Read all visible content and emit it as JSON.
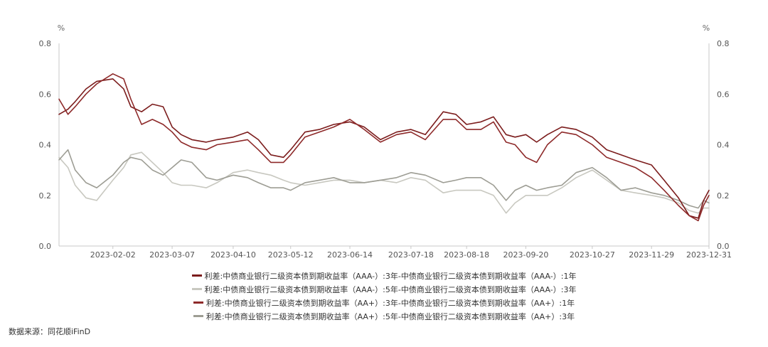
{
  "source": "数据来源：同花顺iFinD",
  "chart_data": {
    "type": "line",
    "title": "",
    "y_unit_left": "%",
    "y_unit_right": "%",
    "ylim": [
      0,
      0.8
    ],
    "yticks": [
      "0.0",
      "0.2",
      "0.4",
      "0.6",
      "0.8"
    ],
    "x_range": [
      "2023-01-03",
      "2023-12-31"
    ],
    "xticks": [
      "2023-02-02",
      "2023-03-07",
      "2023-04-10",
      "2023-05-12",
      "2023-06-14",
      "2023-07-18",
      "2023-08-18",
      "2023-09-20",
      "2023-10-27",
      "2023-11-29",
      "2023-12-31"
    ],
    "legend_position": "bottom",
    "series": [
      {
        "name": "利差:中债商业银行二级资本债到期收益率（AAA-）:3年-中债商业银行二级资本债到期收益率（AAA-）:1年",
        "color": "#7b1c1c",
        "points": [
          [
            "2023-01-03",
            0.52
          ],
          [
            "2023-01-08",
            0.54
          ],
          [
            "2023-01-12",
            0.57
          ],
          [
            "2023-01-18",
            0.62
          ],
          [
            "2023-01-24",
            0.65
          ],
          [
            "2023-02-02",
            0.66
          ],
          [
            "2023-02-08",
            0.62
          ],
          [
            "2023-02-12",
            0.55
          ],
          [
            "2023-02-18",
            0.53
          ],
          [
            "2023-02-24",
            0.56
          ],
          [
            "2023-03-02",
            0.55
          ],
          [
            "2023-03-07",
            0.47
          ],
          [
            "2023-03-12",
            0.44
          ],
          [
            "2023-03-18",
            0.42
          ],
          [
            "2023-03-26",
            0.41
          ],
          [
            "2023-04-01",
            0.42
          ],
          [
            "2023-04-10",
            0.43
          ],
          [
            "2023-04-18",
            0.45
          ],
          [
            "2023-04-24",
            0.42
          ],
          [
            "2023-05-01",
            0.36
          ],
          [
            "2023-05-08",
            0.35
          ],
          [
            "2023-05-12",
            0.38
          ],
          [
            "2023-05-20",
            0.45
          ],
          [
            "2023-05-28",
            0.46
          ],
          [
            "2023-06-05",
            0.48
          ],
          [
            "2023-06-14",
            0.49
          ],
          [
            "2023-06-22",
            0.47
          ],
          [
            "2023-07-01",
            0.42
          ],
          [
            "2023-07-10",
            0.45
          ],
          [
            "2023-07-18",
            0.46
          ],
          [
            "2023-07-26",
            0.44
          ],
          [
            "2023-08-05",
            0.53
          ],
          [
            "2023-08-12",
            0.52
          ],
          [
            "2023-08-18",
            0.48
          ],
          [
            "2023-08-26",
            0.49
          ],
          [
            "2023-09-02",
            0.51
          ],
          [
            "2023-09-09",
            0.44
          ],
          [
            "2023-09-14",
            0.43
          ],
          [
            "2023-09-20",
            0.44
          ],
          [
            "2023-09-26",
            0.41
          ],
          [
            "2023-10-02",
            0.44
          ],
          [
            "2023-10-10",
            0.47
          ],
          [
            "2023-10-18",
            0.46
          ],
          [
            "2023-10-27",
            0.43
          ],
          [
            "2023-11-04",
            0.38
          ],
          [
            "2023-11-12",
            0.36
          ],
          [
            "2023-11-20",
            0.34
          ],
          [
            "2023-11-29",
            0.32
          ],
          [
            "2023-12-06",
            0.26
          ],
          [
            "2023-12-14",
            0.19
          ],
          [
            "2023-12-20",
            0.12
          ],
          [
            "2023-12-25",
            0.11
          ],
          [
            "2023-12-28",
            0.18
          ],
          [
            "2023-12-31",
            0.22
          ]
        ]
      },
      {
        "name": "利差:中债商业银行二级资本债到期收益率（AAA-）:5年-中债商业银行二级资本债到期收益率（AAA-）:3年",
        "color": "#c8c8c0",
        "points": [
          [
            "2023-01-03",
            0.35
          ],
          [
            "2023-01-08",
            0.31
          ],
          [
            "2023-01-12",
            0.24
          ],
          [
            "2023-01-18",
            0.19
          ],
          [
            "2023-01-24",
            0.18
          ],
          [
            "2023-02-02",
            0.26
          ],
          [
            "2023-02-08",
            0.31
          ],
          [
            "2023-02-12",
            0.36
          ],
          [
            "2023-02-18",
            0.37
          ],
          [
            "2023-02-24",
            0.33
          ],
          [
            "2023-03-02",
            0.29
          ],
          [
            "2023-03-07",
            0.25
          ],
          [
            "2023-03-12",
            0.24
          ],
          [
            "2023-03-18",
            0.24
          ],
          [
            "2023-03-26",
            0.23
          ],
          [
            "2023-04-01",
            0.25
          ],
          [
            "2023-04-10",
            0.29
          ],
          [
            "2023-04-18",
            0.3
          ],
          [
            "2023-04-24",
            0.29
          ],
          [
            "2023-05-01",
            0.28
          ],
          [
            "2023-05-08",
            0.26
          ],
          [
            "2023-05-12",
            0.25
          ],
          [
            "2023-05-20",
            0.24
          ],
          [
            "2023-05-28",
            0.25
          ],
          [
            "2023-06-05",
            0.26
          ],
          [
            "2023-06-14",
            0.26
          ],
          [
            "2023-06-22",
            0.25
          ],
          [
            "2023-07-01",
            0.26
          ],
          [
            "2023-07-10",
            0.25
          ],
          [
            "2023-07-18",
            0.27
          ],
          [
            "2023-07-26",
            0.26
          ],
          [
            "2023-08-05",
            0.21
          ],
          [
            "2023-08-12",
            0.22
          ],
          [
            "2023-08-18",
            0.22
          ],
          [
            "2023-08-26",
            0.22
          ],
          [
            "2023-09-02",
            0.2
          ],
          [
            "2023-09-09",
            0.13
          ],
          [
            "2023-09-14",
            0.17
          ],
          [
            "2023-09-20",
            0.2
          ],
          [
            "2023-09-26",
            0.2
          ],
          [
            "2023-10-02",
            0.2
          ],
          [
            "2023-10-10",
            0.23
          ],
          [
            "2023-10-18",
            0.27
          ],
          [
            "2023-10-27",
            0.3
          ],
          [
            "2023-11-04",
            0.26
          ],
          [
            "2023-11-12",
            0.22
          ],
          [
            "2023-11-20",
            0.21
          ],
          [
            "2023-11-29",
            0.2
          ],
          [
            "2023-12-06",
            0.19
          ],
          [
            "2023-12-14",
            0.17
          ],
          [
            "2023-12-20",
            0.14
          ],
          [
            "2023-12-25",
            0.13
          ],
          [
            "2023-12-28",
            0.15
          ],
          [
            "2023-12-31",
            0.15
          ]
        ]
      },
      {
        "name": "利差:中债商业银行二级资本债到期收益率（AA+）:3年-中债商业银行二级资本债到期收益率（AA+）:1年",
        "color": "#8e2a2a",
        "points": [
          [
            "2023-01-03",
            0.58
          ],
          [
            "2023-01-08",
            0.52
          ],
          [
            "2023-01-12",
            0.55
          ],
          [
            "2023-01-18",
            0.6
          ],
          [
            "2023-01-24",
            0.64
          ],
          [
            "2023-02-02",
            0.68
          ],
          [
            "2023-02-08",
            0.66
          ],
          [
            "2023-02-12",
            0.58
          ],
          [
            "2023-02-18",
            0.48
          ],
          [
            "2023-02-24",
            0.5
          ],
          [
            "2023-03-02",
            0.48
          ],
          [
            "2023-03-07",
            0.45
          ],
          [
            "2023-03-12",
            0.41
          ],
          [
            "2023-03-18",
            0.39
          ],
          [
            "2023-03-26",
            0.38
          ],
          [
            "2023-04-01",
            0.4
          ],
          [
            "2023-04-10",
            0.41
          ],
          [
            "2023-04-18",
            0.42
          ],
          [
            "2023-04-24",
            0.38
          ],
          [
            "2023-05-01",
            0.33
          ],
          [
            "2023-05-08",
            0.33
          ],
          [
            "2023-05-12",
            0.36
          ],
          [
            "2023-05-20",
            0.43
          ],
          [
            "2023-05-28",
            0.45
          ],
          [
            "2023-06-05",
            0.47
          ],
          [
            "2023-06-14",
            0.5
          ],
          [
            "2023-06-22",
            0.46
          ],
          [
            "2023-07-01",
            0.41
          ],
          [
            "2023-07-10",
            0.44
          ],
          [
            "2023-07-18",
            0.45
          ],
          [
            "2023-07-26",
            0.42
          ],
          [
            "2023-08-05",
            0.5
          ],
          [
            "2023-08-12",
            0.5
          ],
          [
            "2023-08-18",
            0.46
          ],
          [
            "2023-08-26",
            0.46
          ],
          [
            "2023-09-02",
            0.49
          ],
          [
            "2023-09-09",
            0.41
          ],
          [
            "2023-09-14",
            0.4
          ],
          [
            "2023-09-20",
            0.35
          ],
          [
            "2023-09-26",
            0.33
          ],
          [
            "2023-10-02",
            0.4
          ],
          [
            "2023-10-10",
            0.45
          ],
          [
            "2023-10-18",
            0.44
          ],
          [
            "2023-10-27",
            0.4
          ],
          [
            "2023-11-04",
            0.35
          ],
          [
            "2023-11-12",
            0.33
          ],
          [
            "2023-11-20",
            0.31
          ],
          [
            "2023-11-29",
            0.27
          ],
          [
            "2023-12-06",
            0.22
          ],
          [
            "2023-12-14",
            0.16
          ],
          [
            "2023-12-20",
            0.12
          ],
          [
            "2023-12-25",
            0.1
          ],
          [
            "2023-12-28",
            0.16
          ],
          [
            "2023-12-31",
            0.2
          ]
        ]
      },
      {
        "name": "利差:中债商业银行二级资本债到期收益率（AA+）:5年-中债商业银行二级资本债到期收益率（AA+）:3年",
        "color": "#9d9d94",
        "points": [
          [
            "2023-01-03",
            0.34
          ],
          [
            "2023-01-08",
            0.38
          ],
          [
            "2023-01-12",
            0.3
          ],
          [
            "2023-01-18",
            0.25
          ],
          [
            "2023-01-24",
            0.23
          ],
          [
            "2023-02-02",
            0.28
          ],
          [
            "2023-02-08",
            0.33
          ],
          [
            "2023-02-12",
            0.35
          ],
          [
            "2023-02-18",
            0.34
          ],
          [
            "2023-02-24",
            0.3
          ],
          [
            "2023-03-02",
            0.28
          ],
          [
            "2023-03-07",
            0.31
          ],
          [
            "2023-03-12",
            0.34
          ],
          [
            "2023-03-18",
            0.33
          ],
          [
            "2023-03-26",
            0.27
          ],
          [
            "2023-04-01",
            0.26
          ],
          [
            "2023-04-10",
            0.28
          ],
          [
            "2023-04-18",
            0.27
          ],
          [
            "2023-04-24",
            0.25
          ],
          [
            "2023-05-01",
            0.23
          ],
          [
            "2023-05-08",
            0.23
          ],
          [
            "2023-05-12",
            0.22
          ],
          [
            "2023-05-20",
            0.25
          ],
          [
            "2023-05-28",
            0.26
          ],
          [
            "2023-06-05",
            0.27
          ],
          [
            "2023-06-14",
            0.25
          ],
          [
            "2023-06-22",
            0.25
          ],
          [
            "2023-07-01",
            0.26
          ],
          [
            "2023-07-10",
            0.27
          ],
          [
            "2023-07-18",
            0.29
          ],
          [
            "2023-07-26",
            0.28
          ],
          [
            "2023-08-05",
            0.25
          ],
          [
            "2023-08-12",
            0.26
          ],
          [
            "2023-08-18",
            0.27
          ],
          [
            "2023-08-26",
            0.27
          ],
          [
            "2023-09-02",
            0.24
          ],
          [
            "2023-09-09",
            0.18
          ],
          [
            "2023-09-14",
            0.22
          ],
          [
            "2023-09-20",
            0.24
          ],
          [
            "2023-09-26",
            0.22
          ],
          [
            "2023-10-02",
            0.23
          ],
          [
            "2023-10-10",
            0.24
          ],
          [
            "2023-10-18",
            0.29
          ],
          [
            "2023-10-27",
            0.31
          ],
          [
            "2023-11-04",
            0.27
          ],
          [
            "2023-11-12",
            0.22
          ],
          [
            "2023-11-20",
            0.23
          ],
          [
            "2023-11-29",
            0.21
          ],
          [
            "2023-12-06",
            0.2
          ],
          [
            "2023-12-14",
            0.18
          ],
          [
            "2023-12-20",
            0.16
          ],
          [
            "2023-12-25",
            0.15
          ],
          [
            "2023-12-28",
            0.18
          ],
          [
            "2023-12-31",
            0.17
          ]
        ]
      }
    ]
  }
}
